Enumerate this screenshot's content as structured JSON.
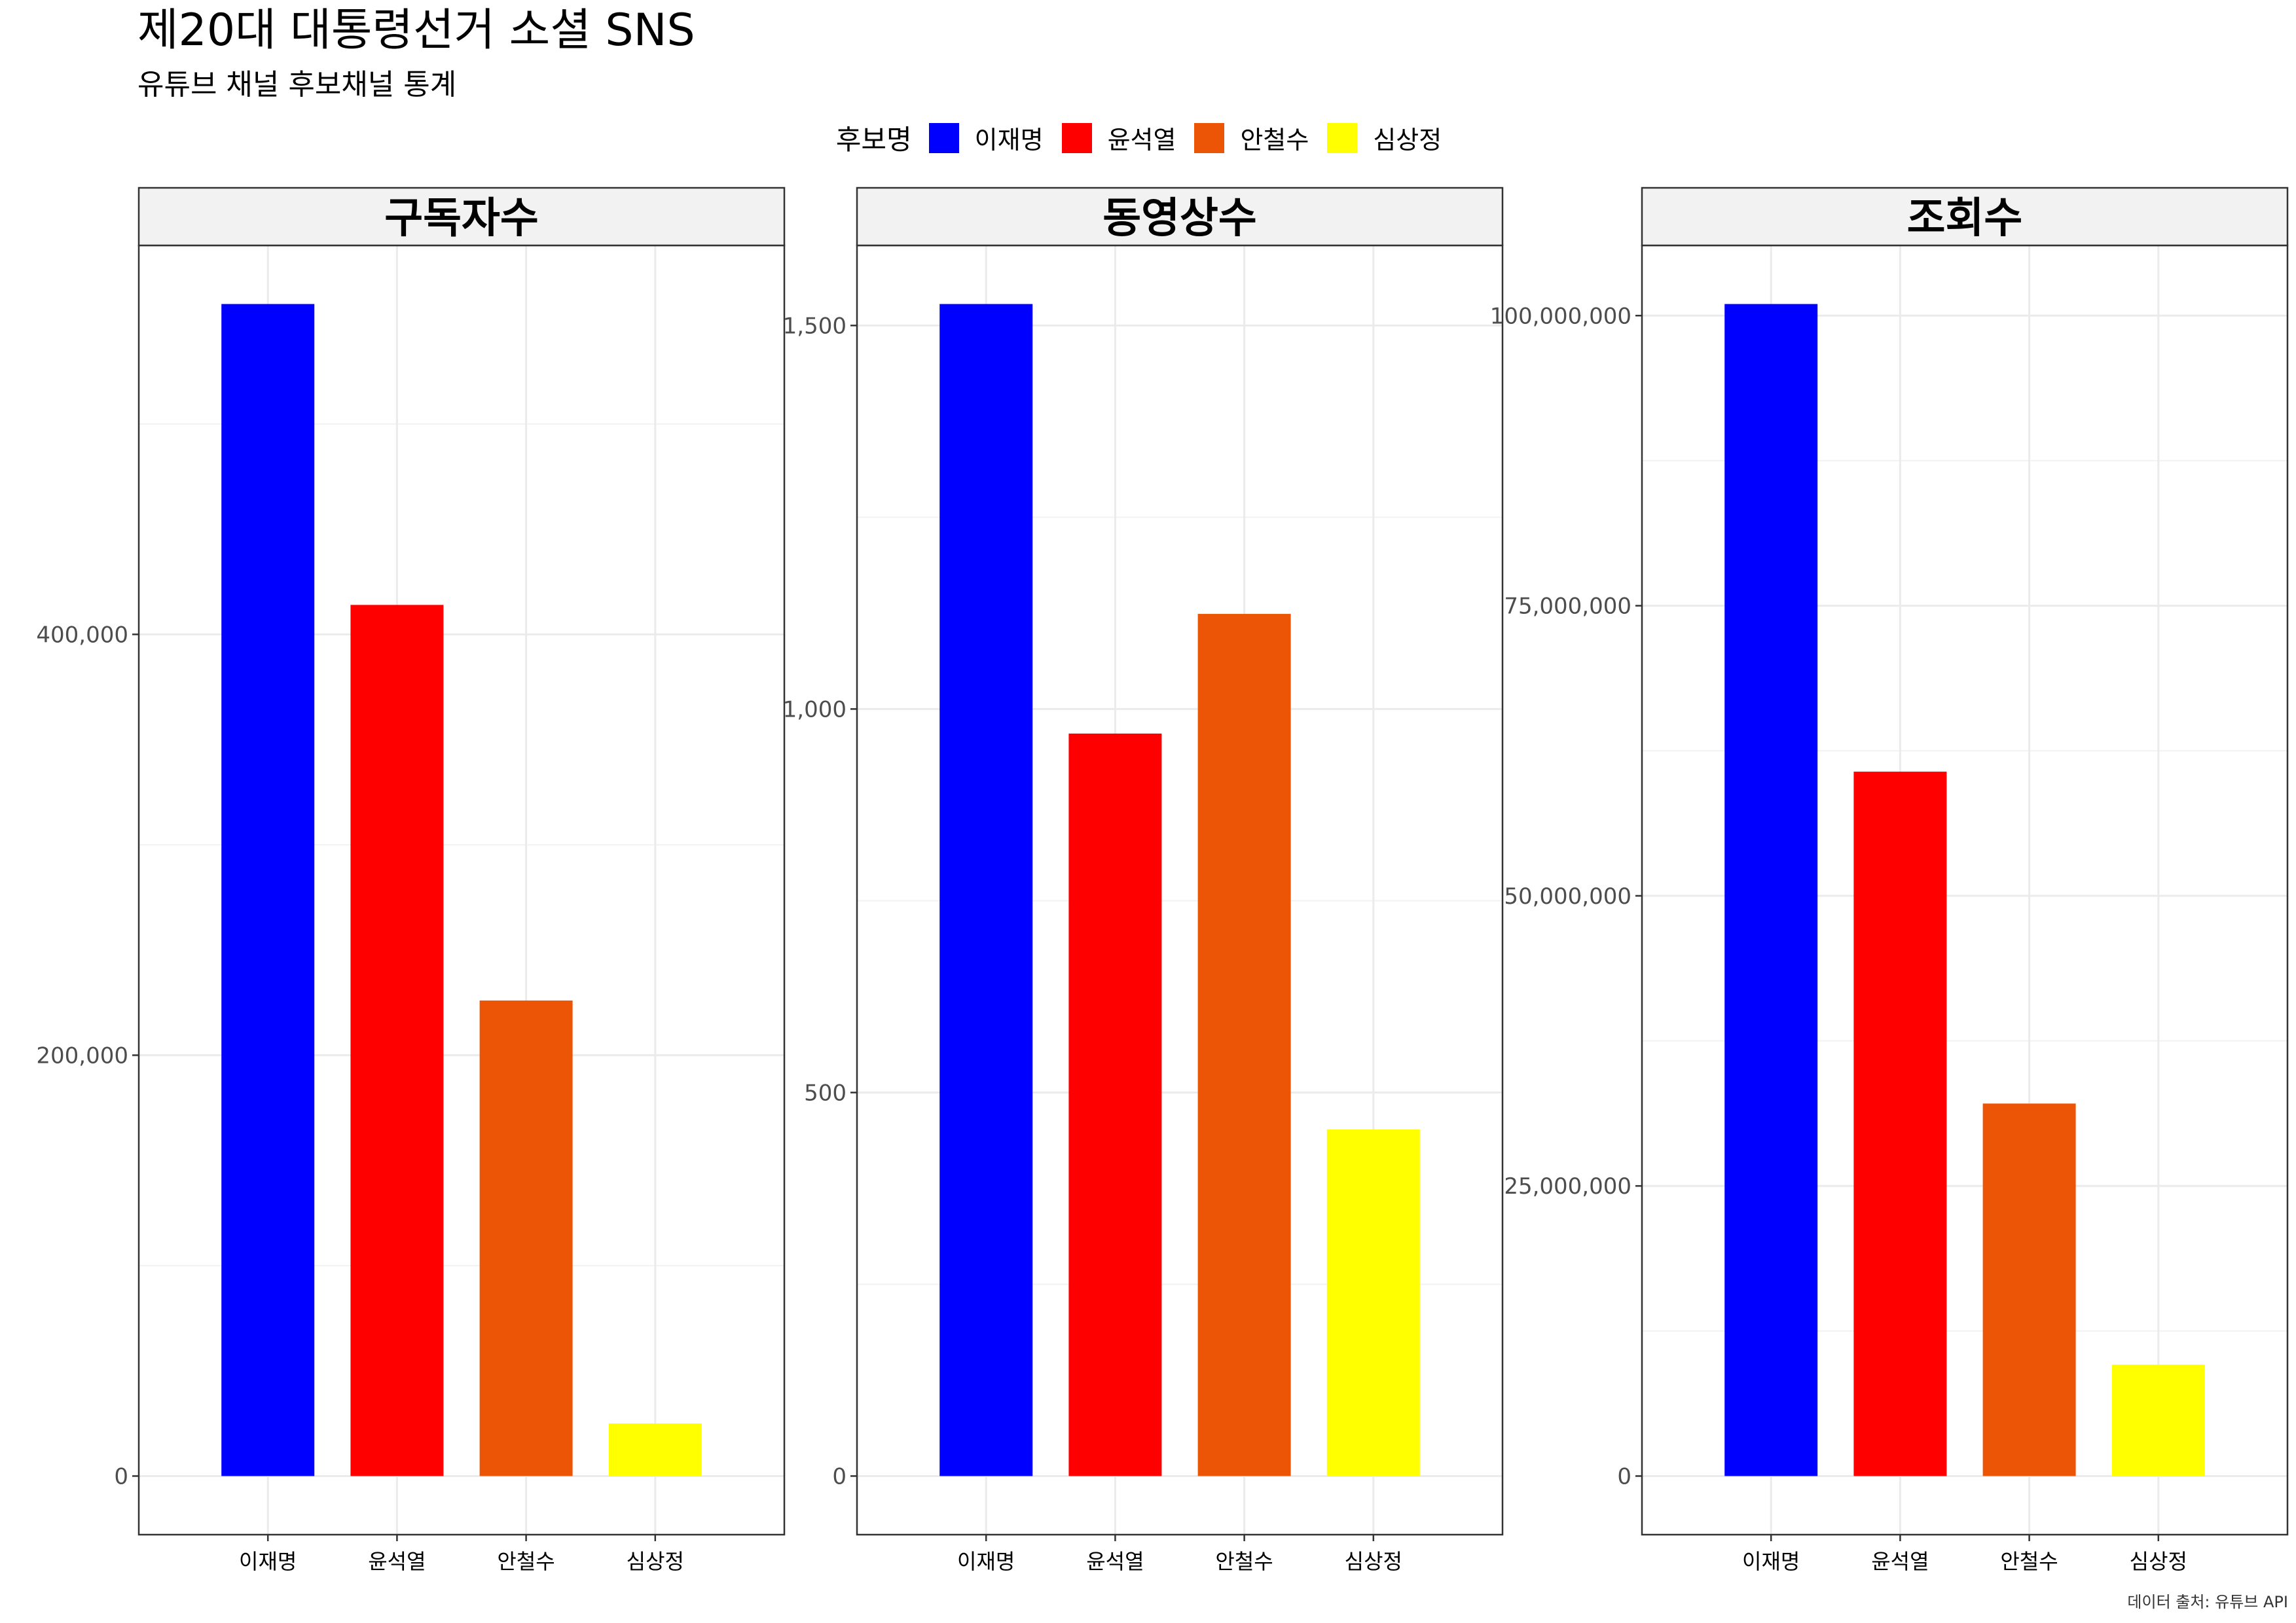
{
  "title": "제20대 대통령선거 소셜 SNS",
  "subtitle": "유튜브 채널 후보채널 통계",
  "legend": {
    "title": "후보명",
    "items": [
      {
        "label": "이재명",
        "color": "#0000FF"
      },
      {
        "label": "윤석열",
        "color": "#FF0000"
      },
      {
        "label": "안철수",
        "color": "#EB5505"
      },
      {
        "label": "심상정",
        "color": "#FFFF00"
      }
    ]
  },
  "caption": "데이터 출처: 유튜브 API",
  "chart_data": [
    {
      "type": "bar",
      "title": "구독자수",
      "categories": [
        "이재명",
        "윤석열",
        "안철수",
        "심상정"
      ],
      "values": [
        557000,
        414000,
        226000,
        25000
      ],
      "colors": [
        "#0000FF",
        "#FF0000",
        "#EB5505",
        "#FFFF00"
      ],
      "ylim": [
        -27850,
        584850
      ],
      "yticks": [
        0,
        200000,
        400000
      ],
      "yticklabels": [
        "0",
        "200,000",
        "400,000"
      ],
      "grid": true
    },
    {
      "type": "bar",
      "title": "동영상수",
      "categories": [
        "이재명",
        "윤석열",
        "안철수",
        "심상정"
      ],
      "values": [
        1528,
        968,
        1124,
        452
      ],
      "colors": [
        "#0000FF",
        "#FF0000",
        "#EB5505",
        "#FFFF00"
      ],
      "ylim": [
        -76.4,
        1604.4
      ],
      "yticks": [
        0,
        500,
        1000,
        1500
      ],
      "yticklabels": [
        "0",
        "500",
        "1,000",
        "1,500"
      ],
      "grid": true
    },
    {
      "type": "bar",
      "title": "조회수",
      "categories": [
        "이재명",
        "윤석열",
        "안철수",
        "심상정"
      ],
      "values": [
        101000000,
        60700000,
        32100000,
        9600000
      ],
      "colors": [
        "#0000FF",
        "#FF0000",
        "#EB5505",
        "#FFFF00"
      ],
      "ylim": [
        -5050000,
        106050000
      ],
      "yticks": [
        0,
        25000000,
        50000000,
        75000000,
        100000000
      ],
      "yticklabels": [
        "0",
        "25,000,000",
        "50,000,000",
        "75,000,000",
        "100,000,000"
      ],
      "grid": true
    }
  ]
}
